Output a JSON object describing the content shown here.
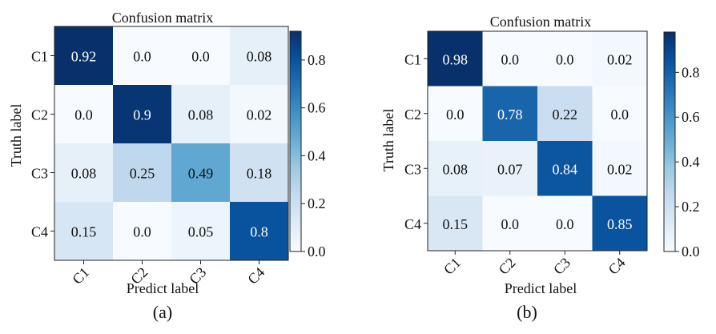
{
  "chart_data": [
    {
      "type": "heatmap",
      "title": "Confusion matrix",
      "xlabel": "Predict label",
      "ylabel": "Truth label",
      "caption": "(a)",
      "x_categories": [
        "C1",
        "C2",
        "C3",
        "C4"
      ],
      "y_categories": [
        "C1",
        "C2",
        "C3",
        "C4"
      ],
      "values": [
        [
          0.92,
          0.0,
          0.0,
          0.08
        ],
        [
          0.0,
          0.9,
          0.08,
          0.02
        ],
        [
          0.08,
          0.25,
          0.49,
          0.18
        ],
        [
          0.15,
          0.0,
          0.05,
          0.8
        ]
      ],
      "value_labels": [
        [
          "0.92",
          "0.0",
          "0.0",
          "0.08"
        ],
        [
          "0.0",
          "0.9",
          "0.08",
          "0.02"
        ],
        [
          "0.08",
          "0.25",
          "0.49",
          "0.18"
        ],
        [
          "0.15",
          "0.0",
          "0.05",
          "0.8"
        ]
      ],
      "color_range": [
        0.0,
        0.92
      ],
      "colorbar_ticks": [
        0.0,
        0.2,
        0.4,
        0.6,
        0.8
      ],
      "colorbar_tick_labels": [
        "0.0",
        "0.2",
        "0.4",
        "0.6",
        "0.8"
      ],
      "colormap": "Blues"
    },
    {
      "type": "heatmap",
      "title": "Confusion matrix",
      "xlabel": "Predict label",
      "ylabel": "Truth label",
      "caption": "(b)",
      "x_categories": [
        "C1",
        "C2",
        "C3",
        "C4"
      ],
      "y_categories": [
        "C1",
        "C2",
        "C3",
        "C4"
      ],
      "values": [
        [
          0.98,
          0.0,
          0.0,
          0.02
        ],
        [
          0.0,
          0.78,
          0.22,
          0.0
        ],
        [
          0.08,
          0.07,
          0.84,
          0.02
        ],
        [
          0.15,
          0.0,
          0.0,
          0.85
        ]
      ],
      "value_labels": [
        [
          "0.98",
          "0.0",
          "0.0",
          "0.02"
        ],
        [
          "0.0",
          "0.78",
          "0.22",
          "0.0"
        ],
        [
          "0.08",
          "0.07",
          "0.84",
          "0.02"
        ],
        [
          "0.15",
          "0.0",
          "0.0",
          "0.85"
        ]
      ],
      "color_range": [
        0.0,
        0.98
      ],
      "colorbar_ticks": [
        0.0,
        0.2,
        0.4,
        0.6,
        0.8
      ],
      "colorbar_tick_labels": [
        "0.0",
        "0.2",
        "0.4",
        "0.6",
        "0.8"
      ],
      "colormap": "Blues"
    }
  ]
}
